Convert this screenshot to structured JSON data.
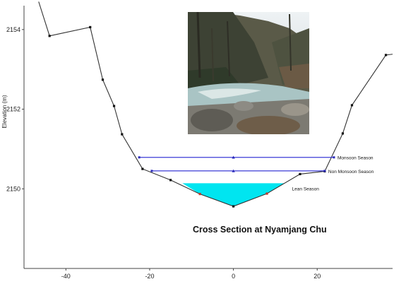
{
  "chart_data": {
    "type": "line",
    "title": "Cross Section at Nyamjang Chu",
    "ylabel": "Elevation (m)",
    "xlabel": "",
    "xlim": [
      -50,
      38
    ],
    "ylim": [
      2148,
      2154.6
    ],
    "x_ticks": [
      "-40",
      "-20",
      "0",
      "20"
    ],
    "x_tick_values": [
      -40,
      -20,
      0,
      20
    ],
    "y_ticks": [
      "2150",
      "2152",
      "2154"
    ],
    "y_tick_values": [
      2150,
      2152,
      2154
    ],
    "grid": false,
    "series": [
      {
        "points": [
          [
            -46.5,
            2154.7
          ],
          [
            -43.9,
            2153.84
          ],
          [
            -34.2,
            2154.06
          ],
          [
            -31.2,
            2152.74
          ],
          [
            -28.5,
            2152.08
          ],
          [
            -26.6,
            2151.37
          ],
          [
            -21.7,
            2150.5
          ],
          [
            -15,
            2150.22
          ],
          [
            -8,
            2149.87
          ],
          [
            0,
            2149.56
          ],
          [
            8,
            2149.88
          ],
          [
            15.9,
            2150.37
          ],
          [
            21.8,
            2150.44
          ],
          [
            26.1,
            2151.39
          ],
          [
            28.3,
            2152.1
          ],
          [
            36.4,
            2153.36
          ],
          [
            38,
            2153.38
          ]
        ],
        "color": "#333333"
      }
    ],
    "water_levels": [
      {
        "name": "Monsoon Season",
        "elevation": 2150.79,
        "x_start": -22.5,
        "x_end": 24,
        "color": "#3b3bd6"
      },
      {
        "name": "Non Monsoon Season",
        "elevation": 2150.45,
        "x_start": -19.5,
        "x_end": 21.8,
        "color": "#3b3bd6"
      },
      {
        "name": "Lean Season",
        "elevation": 2150.14,
        "x_start": -12.2,
        "x_end": 12.3,
        "color": "#00e5f0"
      }
    ]
  },
  "photo": {
    "name": "river-photo",
    "colors": {
      "sky": "#d7dde0",
      "forest": "#4a4c3a",
      "water": "#a9c4c4",
      "rocks": "#7c7a72"
    }
  }
}
